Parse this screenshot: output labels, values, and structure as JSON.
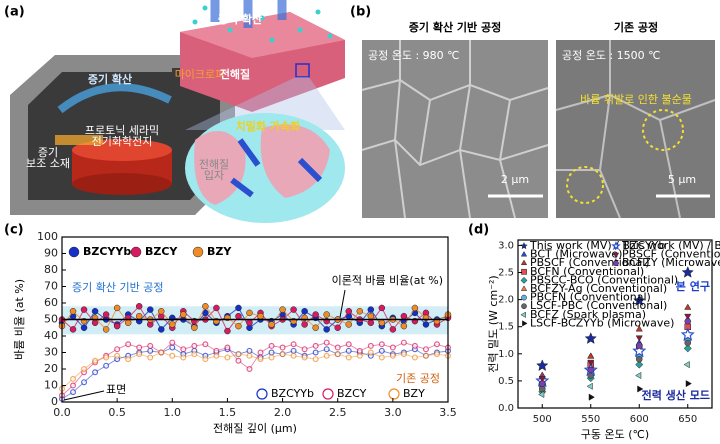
{
  "panel_labels": [
    "(a)",
    "(b)",
    "(c)",
    "(d)"
  ],
  "schematic": {
    "vapor_top": "증기 확산",
    "vapor_side": "증기 확산",
    "microwave": "마이크로파",
    "cell": [
      "프로토닉 세라믹",
      "전기화학전지"
    ],
    "aid": [
      "증기",
      "보조 소재"
    ],
    "electrolyte": "전해질",
    "densification": "치밀화 가속화",
    "particle": [
      "전해질",
      "입자"
    ]
  },
  "micrographs": [
    {
      "title": "증기 확산 기반 공정",
      "temperature": "공정 온도 : 980 ℃",
      "scale_bar": "2 μm"
    },
    {
      "title": "기존 공정",
      "temperature": "공정 온도 : 1500 ℃",
      "scale_bar": "5 μm",
      "note": "바륨 휘발로 인한 불순물"
    }
  ],
  "chart_data": [
    {
      "type": "line",
      "xlabel": "전해질 깊이 (μm)",
      "ylabel": "바륨 비율 (at %)",
      "xlim": [
        0,
        3.5
      ],
      "ylim": [
        0,
        100
      ],
      "xticks": [
        {
          "value": 0,
          "label": "0.0"
        },
        0.5,
        {
          "value": 1,
          "label": "1.0"
        },
        1.5,
        {
          "value": 2,
          "label": "2.0"
        },
        2.5,
        {
          "value": 3,
          "label": "3.0"
        },
        3.5
      ],
      "yticks": [
        0,
        10,
        20,
        30,
        40,
        50,
        60,
        70,
        80,
        90,
        100
      ],
      "reference_line": 50,
      "shaded_band": [
        41,
        58
      ],
      "annotations": [
        "증기 확산 기반 공정",
        "이론적 바륨 비율(at %)",
        "기존 공정",
        "표면"
      ],
      "x": [
        0,
        0.1,
        0.2,
        0.3,
        0.4,
        0.5,
        0.6,
        0.7,
        0.8,
        0.9,
        1.0,
        1.1,
        1.2,
        1.3,
        1.4,
        1.5,
        1.6,
        1.7,
        1.8,
        1.9,
        2.0,
        2.1,
        2.2,
        2.3,
        2.4,
        2.5,
        2.6,
        2.7,
        2.8,
        2.9,
        3.0,
        3.1,
        3.2,
        3.3,
        3.4,
        3.5
      ],
      "series": [
        {
          "name": "BZCYYb",
          "color": "#1530c8",
          "marker": "circle",
          "values": [
            48,
            52,
            45,
            55,
            50,
            47,
            53,
            49,
            56,
            44,
            51,
            50,
            46,
            54,
            48,
            52,
            57,
            45,
            50,
            49,
            53,
            47,
            55,
            51,
            44,
            50,
            52,
            48,
            56,
            46,
            51,
            49,
            54,
            47,
            50,
            52
          ]
        },
        {
          "name": "BZCY",
          "color": "#d81b60",
          "marker": "circle",
          "values": [
            50,
            44,
            56,
            48,
            53,
            46,
            51,
            58,
            47,
            52,
            45,
            55,
            49,
            50,
            57,
            43,
            52,
            48,
            54,
            46,
            50,
            56,
            47,
            53,
            49,
            45,
            55,
            50,
            48,
            57,
            44,
            52,
            49,
            54,
            47,
            51
          ]
        },
        {
          "name": "BZY",
          "color": "#f08c28",
          "marker": "circle",
          "values": [
            46,
            55,
            49,
            51,
            44,
            57,
            48,
            52,
            50,
            55,
            47,
            53,
            45,
            58,
            49,
            51,
            46,
            54,
            52,
            47,
            56,
            49,
            51,
            45,
            53,
            50,
            47,
            55,
            52,
            48,
            50,
            46,
            57,
            51,
            49,
            53
          ]
        },
        {
          "name": "BZCYYb",
          "color": "#1530c8",
          "marker": "circle-open",
          "values": [
            2,
            6,
            12,
            18,
            22,
            26,
            28,
            30,
            31,
            30,
            33,
            29,
            31,
            28,
            30,
            32,
            29,
            31,
            27,
            30,
            29,
            31,
            28,
            30,
            32,
            29,
            31,
            30,
            28,
            31,
            29,
            30,
            32,
            28,
            30,
            31
          ]
        },
        {
          "name": "BZCY",
          "color": "#d81b60",
          "marker": "circle-open",
          "values": [
            4,
            10,
            18,
            24,
            28,
            32,
            35,
            33,
            34,
            30,
            36,
            32,
            34,
            35,
            31,
            33,
            25,
            20,
            30,
            34,
            33,
            35,
            32,
            34,
            36,
            33,
            35,
            31,
            34,
            35,
            33,
            36,
            34,
            32,
            35,
            33
          ]
        },
        {
          "name": "BZY",
          "color": "#f08c28",
          "marker": "circle-open",
          "values": [
            8,
            14,
            20,
            25,
            27,
            28,
            26,
            29,
            27,
            30,
            28,
            27,
            29,
            26,
            28,
            27,
            29,
            28,
            26,
            27,
            29,
            28,
            27,
            26,
            28,
            29,
            27,
            28,
            30,
            27,
            28,
            29,
            27,
            28,
            29,
            28
          ]
        }
      ]
    },
    {
      "type": "scatter",
      "xlabel": "구동 온도 (℃)",
      "ylabel": "전력 밀도 (W cm⁻²)",
      "xlim": [
        475,
        675
      ],
      "ylim": [
        0,
        3.1
      ],
      "xticks": [
        500,
        550,
        600,
        650
      ],
      "yticks": [
        {
          "value": 0,
          "label": "0.0"
        },
        0.5,
        {
          "value": 1,
          "label": "1.0"
        },
        1.5,
        {
          "value": 2,
          "label": "2.0"
        },
        2.5,
        {
          "value": 3,
          "label": "3.0"
        }
      ],
      "annotations": [
        "본 연구",
        "전력 생산 모드"
      ],
      "x": [
        500,
        550,
        600,
        650
      ],
      "series": [
        {
          "name": "This work (MV) / BZCYYb",
          "color": "#1b2a9c",
          "marker": "star",
          "values": [
            0.78,
            1.28,
            1.98,
            2.5
          ]
        },
        {
          "name": "BCT (Microwave)",
          "color": "#2a4fd0",
          "marker": "triangle-up",
          "values": [
            0.55,
            0.95,
            1.2,
            1.55
          ]
        },
        {
          "name": "PBSCF (Conventional)",
          "color": "#c0392b",
          "marker": "triangle-up",
          "values": [
            0.6,
            0.95,
            1.45,
            1.85
          ]
        },
        {
          "name": "BCFN (Conventional)",
          "color": "#e05050",
          "marker": "square",
          "values": [
            0.5,
            0.8,
            1.1,
            1.5
          ]
        },
        {
          "name": "PBSCC-BCO (Conventional)",
          "color": "#2aa198",
          "marker": "diamond",
          "values": [
            0.3,
            0.55,
            0.8,
            1.1
          ]
        },
        {
          "name": "BCFZY-Ag (Conventional)",
          "color": "#f07a5a",
          "marker": "triangle-up",
          "values": [
            0.45,
            0.75,
            1.0,
            1.35
          ]
        },
        {
          "name": "PBCFN (Conventional)",
          "color": "#5fb0e0",
          "marker": "circle",
          "values": [
            0.4,
            0.65,
            0.95,
            1.25
          ]
        },
        {
          "name": "LSCF-PBC (Conventional)",
          "color": "#666666",
          "marker": "circle",
          "values": [
            0.35,
            0.6,
            0.9,
            1.2
          ]
        },
        {
          "name": "BCFZ (Spark plasma)",
          "color": "#7fd0c8",
          "marker": "triangle-left",
          "values": [
            0.25,
            0.4,
            0.6,
            0.8
          ]
        },
        {
          "name": "LSCF-BCZYYb (Microwave)",
          "color": "#111111",
          "marker": "triangle-right",
          "values": [
            null,
            0.2,
            0.35,
            0.45
          ]
        },
        {
          "name": "This work (MV) / BZCY",
          "color": "#2a4fd0",
          "marker": "star-open",
          "values": [
            0.5,
            0.7,
            1.05,
            1.35
          ]
        },
        {
          "name": "PBSCF (Conventional)",
          "color": "#8b1a3a",
          "marker": "triangle-down",
          "values": [
            0.55,
            0.85,
            1.3,
            1.7
          ]
        },
        {
          "name": "BCFZY (Microwave)",
          "color": "#7a3fb0",
          "marker": "hexagon",
          "values": [
            0.45,
            0.7,
            1.15,
            1.6
          ]
        }
      ]
    }
  ]
}
